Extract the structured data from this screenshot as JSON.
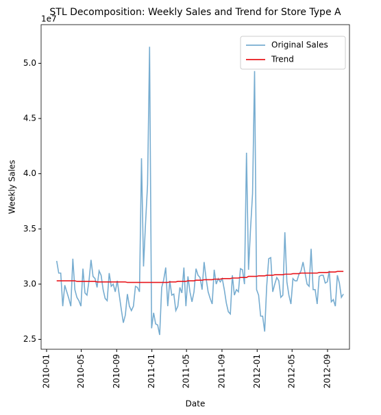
{
  "chart_data": {
    "type": "line",
    "title": "STL Decomposition: Weekly Sales and Trend for Store Type A",
    "xlabel": "Date",
    "ylabel": "Weekly Sales",
    "y_offset_label": "1e7",
    "legend": "upper right",
    "x": [
      "2010-02-05",
      "2010-02-12",
      "2010-02-19",
      "2010-02-26",
      "2010-03-05",
      "2010-03-12",
      "2010-03-19",
      "2010-03-26",
      "2010-04-02",
      "2010-04-09",
      "2010-04-16",
      "2010-04-23",
      "2010-04-30",
      "2010-05-07",
      "2010-05-14",
      "2010-05-21",
      "2010-05-28",
      "2010-06-04",
      "2010-06-11",
      "2010-06-18",
      "2010-06-25",
      "2010-07-02",
      "2010-07-09",
      "2010-07-16",
      "2010-07-23",
      "2010-07-30",
      "2010-08-06",
      "2010-08-13",
      "2010-08-20",
      "2010-08-27",
      "2010-09-03",
      "2010-09-10",
      "2010-09-17",
      "2010-09-24",
      "2010-10-01",
      "2010-10-08",
      "2010-10-15",
      "2010-10-22",
      "2010-10-29",
      "2010-11-05",
      "2010-11-12",
      "2010-11-19",
      "2010-11-26",
      "2010-12-03",
      "2010-12-10",
      "2010-12-17",
      "2010-12-24",
      "2010-12-31",
      "2011-01-07",
      "2011-01-14",
      "2011-01-21",
      "2011-01-28",
      "2011-02-04",
      "2011-02-11",
      "2011-02-18",
      "2011-02-25",
      "2011-03-04",
      "2011-03-11",
      "2011-03-18",
      "2011-03-25",
      "2011-04-01",
      "2011-04-08",
      "2011-04-15",
      "2011-04-22",
      "2011-04-29",
      "2011-05-06",
      "2011-05-13",
      "2011-05-20",
      "2011-05-27",
      "2011-06-03",
      "2011-06-10",
      "2011-06-17",
      "2011-06-24",
      "2011-07-01",
      "2011-07-08",
      "2011-07-15",
      "2011-07-22",
      "2011-07-29",
      "2011-08-05",
      "2011-08-12",
      "2011-08-19",
      "2011-08-26",
      "2011-09-02",
      "2011-09-09",
      "2011-09-16",
      "2011-09-23",
      "2011-09-30",
      "2011-10-07",
      "2011-10-14",
      "2011-10-21",
      "2011-10-28",
      "2011-11-04",
      "2011-11-11",
      "2011-11-18",
      "2011-11-25",
      "2011-12-02",
      "2011-12-09",
      "2011-12-16",
      "2011-12-23",
      "2011-12-30",
      "2012-01-06",
      "2012-01-13",
      "2012-01-20",
      "2012-01-27",
      "2012-02-03",
      "2012-02-10",
      "2012-02-17",
      "2012-02-24",
      "2012-03-02",
      "2012-03-09",
      "2012-03-16",
      "2012-03-23",
      "2012-03-30",
      "2012-04-06",
      "2012-04-13",
      "2012-04-20",
      "2012-04-27",
      "2012-05-04",
      "2012-05-11",
      "2012-05-18",
      "2012-05-25",
      "2012-06-01",
      "2012-06-08",
      "2012-06-15",
      "2012-06-22",
      "2012-06-29",
      "2012-07-06",
      "2012-07-13",
      "2012-07-20",
      "2012-07-27",
      "2012-08-03",
      "2012-08-10",
      "2012-08-17",
      "2012-08-24",
      "2012-08-31",
      "2012-09-07",
      "2012-09-14",
      "2012-09-21",
      "2012-09-28",
      "2012-10-05",
      "2012-10-12",
      "2012-10-19",
      "2012-10-26"
    ],
    "series": [
      {
        "name": "Original Sales",
        "color": "#76acd0",
        "values": [
          3.21,
          3.1,
          3.1,
          2.8,
          2.99,
          2.93,
          2.87,
          2.8,
          3.23,
          2.95,
          2.88,
          2.85,
          2.8,
          3.14,
          2.92,
          2.9,
          3.03,
          3.22,
          3.07,
          3.05,
          2.97,
          3.12,
          3.08,
          2.95,
          2.87,
          2.85,
          3.1,
          2.98,
          3.0,
          2.93,
          3.03,
          2.9,
          2.77,
          2.65,
          2.72,
          2.91,
          2.8,
          2.76,
          2.8,
          2.98,
          2.97,
          2.93,
          4.14,
          3.16,
          3.55,
          3.9,
          5.15,
          2.6,
          2.74,
          2.64,
          2.63,
          2.54,
          2.97,
          3.04,
          3.15,
          2.8,
          3.03,
          2.9,
          2.91,
          2.76,
          2.8,
          2.97,
          2.92,
          3.15,
          2.8,
          3.07,
          2.93,
          2.84,
          2.93,
          3.14,
          3.08,
          3.06,
          2.95,
          3.2,
          3.05,
          2.93,
          2.87,
          2.82,
          3.13,
          3.0,
          3.05,
          3.02,
          3.05,
          2.95,
          2.83,
          2.75,
          2.73,
          3.08,
          2.9,
          2.95,
          2.93,
          3.14,
          3.13,
          3.0,
          4.19,
          3.13,
          3.5,
          3.82,
          4.93,
          2.95,
          2.9,
          2.71,
          2.71,
          2.57,
          2.98,
          3.23,
          3.24,
          2.93,
          3.0,
          3.06,
          3.03,
          2.88,
          2.9,
          3.47,
          3.02,
          2.9,
          2.82,
          3.05,
          3.03,
          3.03,
          3.09,
          3.12,
          3.2,
          3.1,
          3.0,
          2.98,
          3.32,
          2.95,
          2.95,
          2.82,
          3.07,
          3.08,
          3.08,
          3.01,
          3.02,
          3.12,
          2.84,
          2.86,
          2.8,
          3.08,
          3.01,
          2.88,
          2.91
        ]
      },
      {
        "name": "Trend",
        "color": "#e8141a",
        "values": [
          3.03,
          3.03,
          3.03,
          3.03,
          3.03,
          3.03,
          3.03,
          3.03,
          3.03,
          3.03,
          3.025,
          3.025,
          3.025,
          3.025,
          3.025,
          3.025,
          3.025,
          3.025,
          3.025,
          3.025,
          3.02,
          3.02,
          3.02,
          3.02,
          3.02,
          3.02,
          3.02,
          3.02,
          3.02,
          3.02,
          3.02,
          3.02,
          3.02,
          3.02,
          3.02,
          3.015,
          3.015,
          3.015,
          3.015,
          3.015,
          3.015,
          3.015,
          3.015,
          3.015,
          3.015,
          3.015,
          3.015,
          3.015,
          3.015,
          3.015,
          3.015,
          3.015,
          3.015,
          3.015,
          3.015,
          3.015,
          3.02,
          3.02,
          3.02,
          3.02,
          3.025,
          3.025,
          3.025,
          3.025,
          3.025,
          3.03,
          3.03,
          3.03,
          3.03,
          3.035,
          3.035,
          3.035,
          3.035,
          3.04,
          3.04,
          3.04,
          3.04,
          3.04,
          3.045,
          3.045,
          3.045,
          3.045,
          3.05,
          3.05,
          3.05,
          3.05,
          3.05,
          3.055,
          3.055,
          3.055,
          3.055,
          3.06,
          3.06,
          3.06,
          3.06,
          3.07,
          3.07,
          3.07,
          3.07,
          3.07,
          3.075,
          3.075,
          3.075,
          3.075,
          3.08,
          3.08,
          3.08,
          3.08,
          3.085,
          3.085,
          3.085,
          3.085,
          3.085,
          3.09,
          3.09,
          3.09,
          3.09,
          3.095,
          3.095,
          3.095,
          3.095,
          3.1,
          3.1,
          3.1,
          3.1,
          3.1,
          3.1,
          3.1,
          3.1,
          3.1,
          3.105,
          3.105,
          3.105,
          3.105,
          3.105,
          3.11,
          3.11,
          3.11,
          3.11,
          3.115,
          3.115,
          3.115,
          3.115
        ]
      }
    ],
    "xlim": [
      "2009-12-13",
      "2012-11-16"
    ],
    "xticks": [
      "2010-01",
      "2010-05",
      "2010-09",
      "2011-01",
      "2011-05",
      "2011-09",
      "2012-01",
      "2012-05",
      "2012-09"
    ],
    "ylim": [
      2.41,
      5.35
    ],
    "yticks": [
      2.5,
      {
        "value": 3,
        "label": "3.0"
      },
      3.5,
      {
        "value": 4,
        "label": "4.0"
      },
      4.5,
      {
        "value": 5,
        "label": "5.0"
      }
    ]
  }
}
